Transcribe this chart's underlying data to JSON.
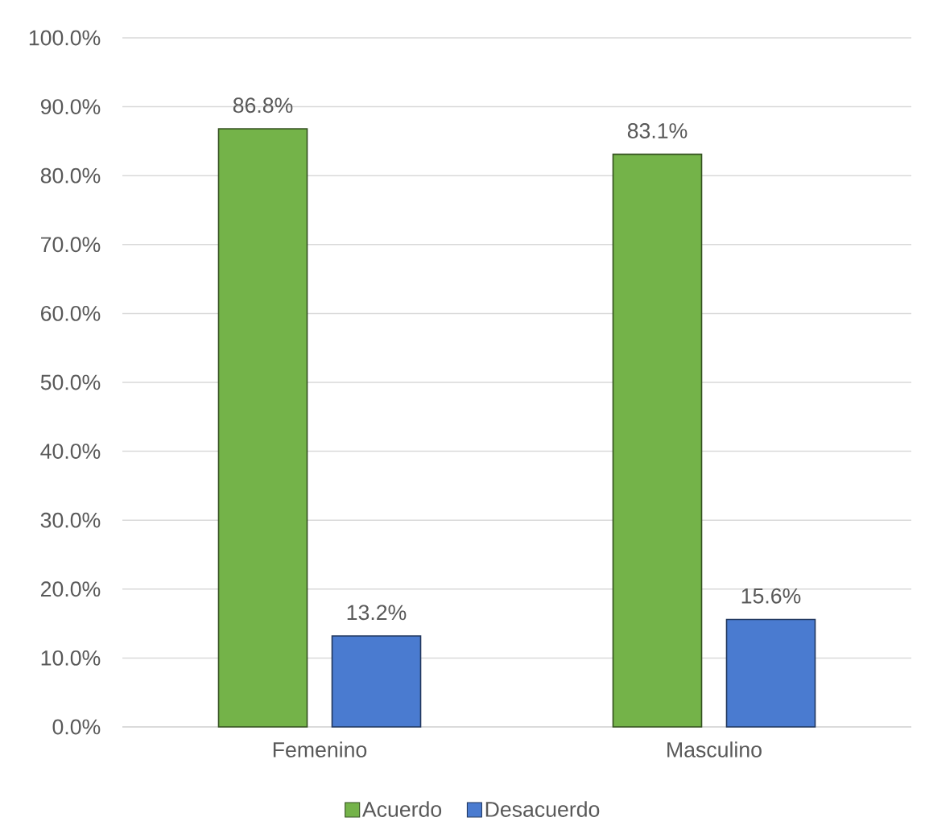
{
  "chart_data": {
    "type": "bar",
    "categories": [
      "Femenino",
      "Masculino"
    ],
    "series": [
      {
        "name": "Acuerdo",
        "color": "#74b349",
        "values": [
          86.8,
          83.1
        ],
        "value_labels": [
          "86.8%",
          "83.1%"
        ]
      },
      {
        "name": "Desacuerdo",
        "color": "#4a7bd0",
        "values": [
          13.2,
          15.6
        ],
        "value_labels": [
          "13.2%",
          "15.6%"
        ]
      }
    ],
    "ylim": [
      0,
      100
    ],
    "yticks": [
      {
        "value": 0,
        "label": "0.0%"
      },
      {
        "value": 10,
        "label": "10.0%"
      },
      {
        "value": 20,
        "label": "20.0%"
      },
      {
        "value": 30,
        "label": "30.0%"
      },
      {
        "value": 40,
        "label": "40.0%"
      },
      {
        "value": 50,
        "label": "50.0%"
      },
      {
        "value": 60,
        "label": "60.0%"
      },
      {
        "value": 70,
        "label": "70.0%"
      },
      {
        "value": 80,
        "label": "80.0%"
      },
      {
        "value": 90,
        "label": "90.0%"
      },
      {
        "value": 100,
        "label": "100.0%"
      }
    ],
    "grid": "y",
    "legend": "bottom"
  }
}
